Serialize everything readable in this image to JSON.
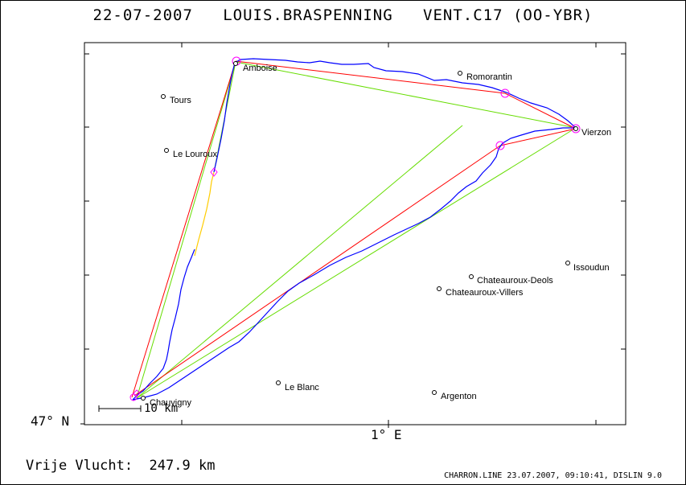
{
  "header": {
    "date": "22-07-2007",
    "pilot": "LOUIS.BRASPENNING",
    "glider": "VENT.C17 (OO-YBR)"
  },
  "axes": {
    "lat_label": "47° N",
    "lon_label": "1° E"
  },
  "scale_bar": {
    "label": "10 km"
  },
  "summary": {
    "label": "Vrije Vlucht:",
    "value": "247.9 km"
  },
  "footer": "CHARRON.LINE 23.07.2007, 09:10:41, DISLIN 9.0",
  "colors": {
    "track": "#0000ff",
    "track_alt": "#ffcc00",
    "task_legs": "#ff0000",
    "sector_lines": "#66dd00",
    "turnpoint_circles": "#ff00ff"
  },
  "places": [
    {
      "id": "amboise",
      "name": "Amboise"
    },
    {
      "id": "romorantin",
      "name": "Romorantin"
    },
    {
      "id": "tours",
      "name": "Tours"
    },
    {
      "id": "le-louroux",
      "name": "Le Louroux"
    },
    {
      "id": "vierzon",
      "name": "Vierzon"
    },
    {
      "id": "issoudun",
      "name": "Issoudun"
    },
    {
      "id": "chateauroux-deols",
      "name": "Chateauroux-Deols"
    },
    {
      "id": "chateauroux-villers",
      "name": "Chateauroux-Villers"
    },
    {
      "id": "le-blanc",
      "name": "Le Blanc"
    },
    {
      "id": "argenton",
      "name": "Argenton"
    },
    {
      "id": "chauvigny",
      "name": "Chauvigny"
    }
  ]
}
